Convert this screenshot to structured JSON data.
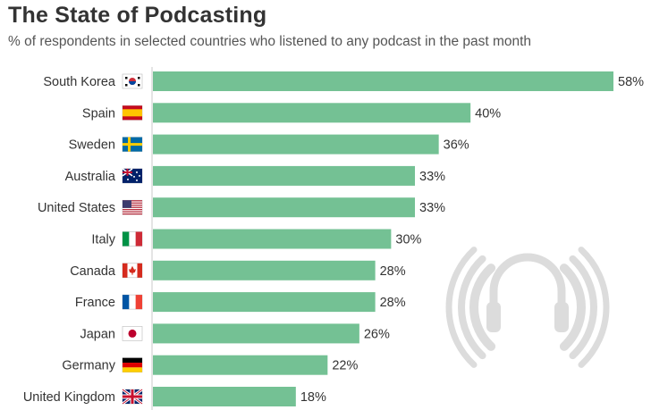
{
  "title": "The State of Podcasting",
  "subtitle": "% of respondents in selected countries who listened to any podcast in the past month",
  "colors": {
    "bar": "#74c194",
    "axis": "#c9c9c9",
    "icon": "#dcdcdc"
  },
  "icon": "headphones-podcast-icon",
  "chart_data": {
    "type": "bar",
    "orientation": "horizontal",
    "title": "The State of Podcasting",
    "subtitle": "% of respondents in selected countries who listened to any podcast in the past month",
    "categories": [
      "South Korea",
      "Spain",
      "Sweden",
      "Australia",
      "United States",
      "Italy",
      "Canada",
      "France",
      "Japan",
      "Germany",
      "United Kingdom"
    ],
    "flags": [
      "south-korea-flag-icon",
      "spain-flag-icon",
      "sweden-flag-icon",
      "australia-flag-icon",
      "united-states-flag-icon",
      "italy-flag-icon",
      "canada-flag-icon",
      "france-flag-icon",
      "japan-flag-icon",
      "germany-flag-icon",
      "united-kingdom-flag-icon"
    ],
    "values": [
      58,
      40,
      36,
      33,
      33,
      30,
      28,
      28,
      26,
      22,
      18
    ],
    "value_labels": [
      "58%",
      "40%",
      "36%",
      "33%",
      "33%",
      "30%",
      "28%",
      "28%",
      "26%",
      "22%",
      "18%"
    ],
    "xlim": [
      0,
      58
    ],
    "grid": false
  }
}
